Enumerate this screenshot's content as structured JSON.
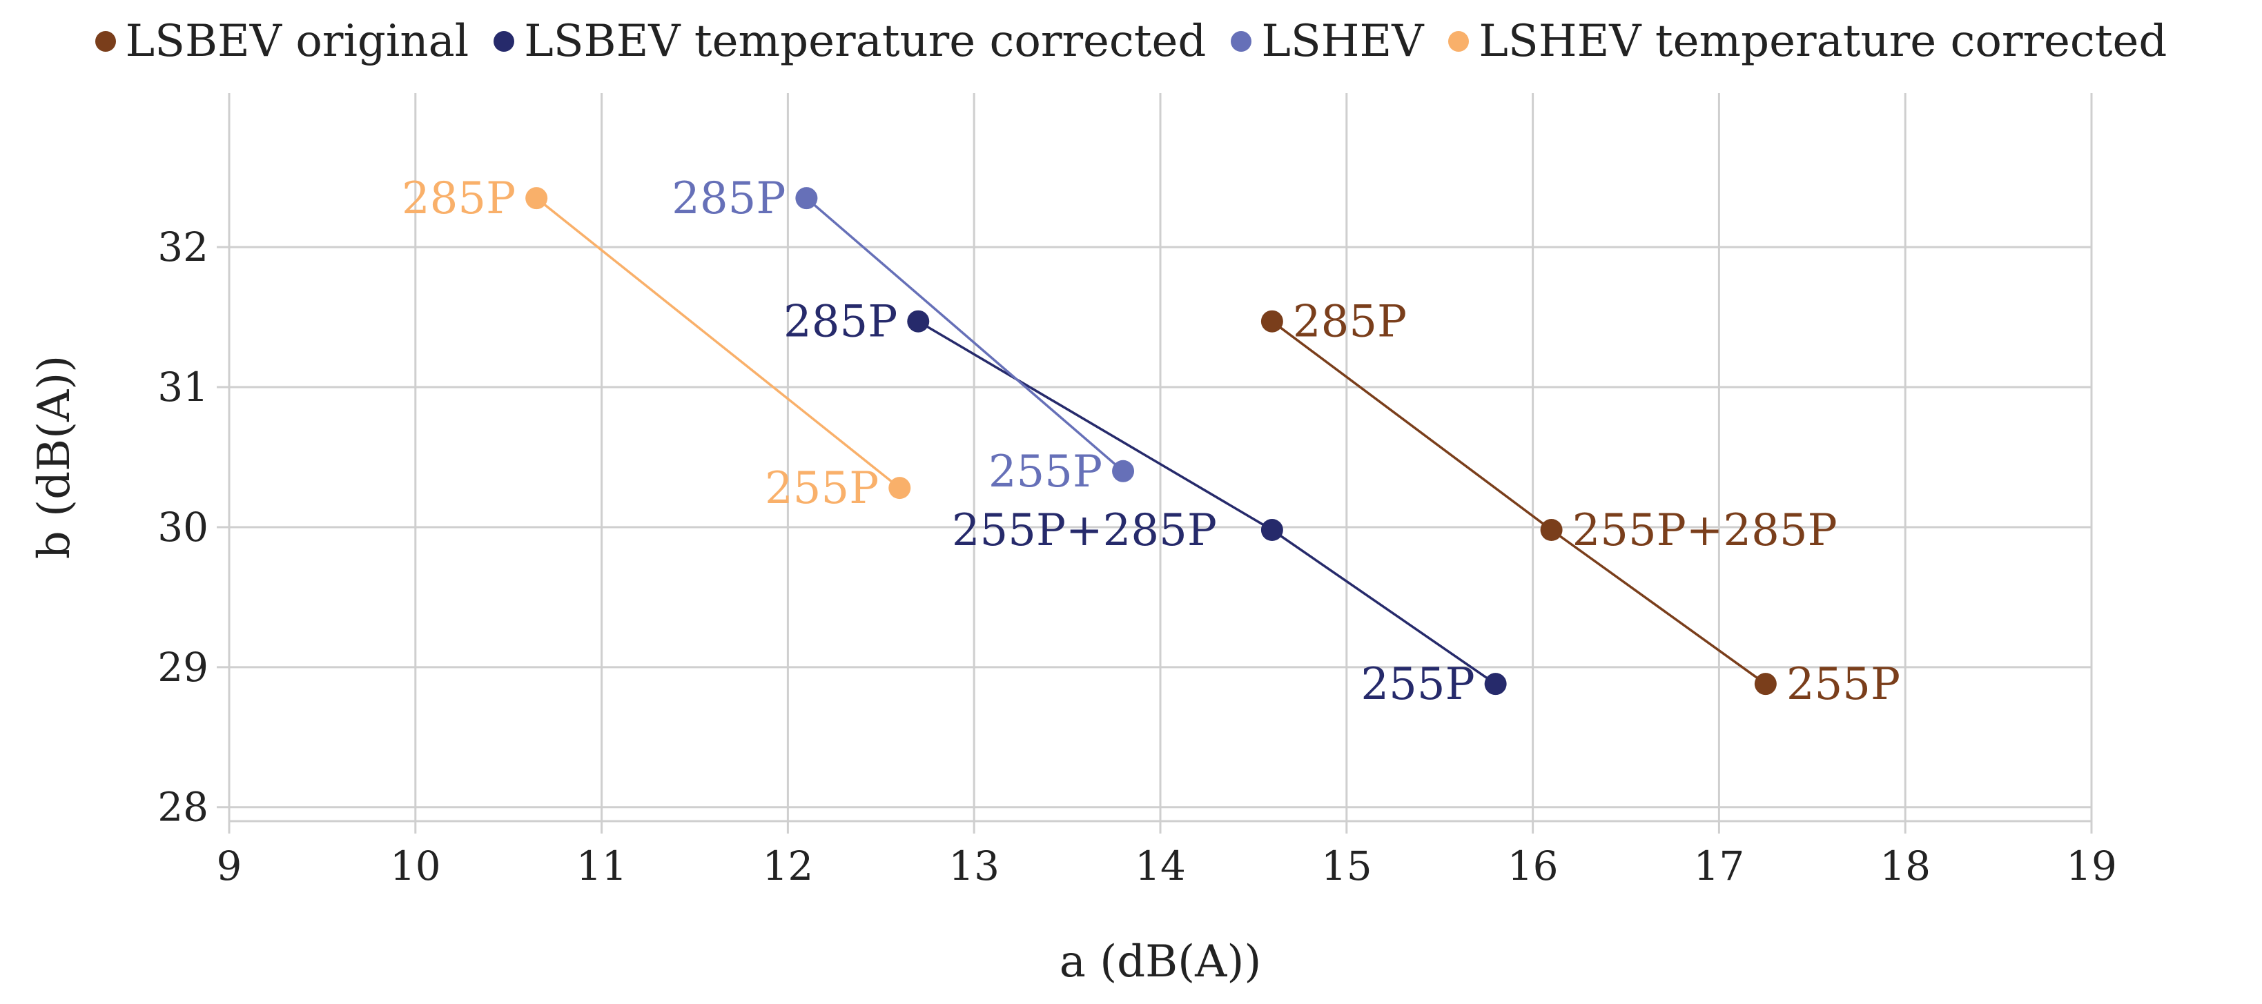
{
  "chart_data": {
    "type": "scatter",
    "title": "",
    "xlabel": "a (dB(A))",
    "ylabel": "b (dB(A))",
    "xlim": [
      9,
      19
    ],
    "ylim": [
      27.9,
      33.1
    ],
    "x_ticks": [
      9,
      10,
      11,
      12,
      13,
      14,
      15,
      16,
      17,
      18,
      19
    ],
    "y_ticks": [
      28,
      29,
      30,
      31,
      32
    ],
    "grid": true,
    "legend_position": "top",
    "series": [
      {
        "name": "LSBEV original",
        "color": "#7a3e1b",
        "points": [
          {
            "x": 14.6,
            "y": 31.47,
            "label": "285P",
            "label_side": "right"
          },
          {
            "x": 16.1,
            "y": 29.98,
            "label": "255P+285P",
            "label_side": "right"
          },
          {
            "x": 17.25,
            "y": 28.88,
            "label": "255P",
            "label_side": "right"
          }
        ]
      },
      {
        "name": "LSBEV temperature corrected",
        "color": "#262a6b",
        "points": [
          {
            "x": 12.7,
            "y": 31.47,
            "label": "285P",
            "label_side": "left"
          },
          {
            "x": 14.6,
            "y": 29.98,
            "label": "255P+285P",
            "label_side": "below-left"
          },
          {
            "x": 15.8,
            "y": 28.88,
            "label": "255P",
            "label_side": "left"
          }
        ]
      },
      {
        "name": "LSHEV",
        "color": "#6670b8",
        "points": [
          {
            "x": 12.1,
            "y": 32.35,
            "label": "285P",
            "label_side": "left"
          },
          {
            "x": 13.8,
            "y": 30.4,
            "label": "255P",
            "label_side": "left"
          }
        ]
      },
      {
        "name": "LSHEV temperature corrected",
        "color": "#f9b06a",
        "points": [
          {
            "x": 10.65,
            "y": 32.35,
            "label": "285P",
            "label_side": "left"
          },
          {
            "x": 12.6,
            "y": 30.28,
            "label": "255P",
            "label_side": "left"
          }
        ]
      }
    ]
  }
}
